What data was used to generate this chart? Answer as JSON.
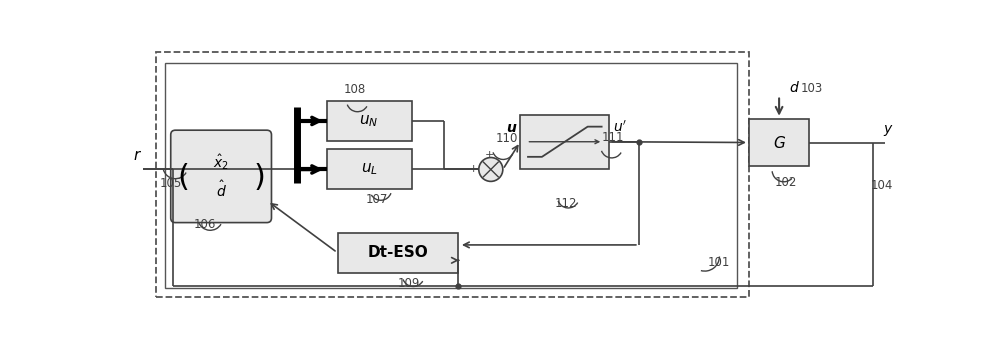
{
  "fig_width": 10.0,
  "fig_height": 3.47,
  "dpi": 100,
  "bg_color": "#ffffff",
  "line_color": "#404040",
  "block_color": "#e8e8e8",
  "labels": {
    "r": "$r$",
    "uN": "$\\boldsymbol{u_N}$",
    "uL": "$\\boldsymbol{u_L}$",
    "dteso": "Dt-ESO",
    "G": "$G$",
    "u": "$\\boldsymbol{u}$",
    "uprime": "$\\boldsymbol{u'}$",
    "y": "$y$",
    "d": "$d$",
    "n101": "101",
    "n102": "102",
    "n103": "103",
    "n104": "104",
    "n105": "105",
    "n106": "106",
    "n107": "107",
    "n108": "108",
    "n109": "109",
    "n110": "110",
    "n111": "111",
    "n112": "112"
  }
}
